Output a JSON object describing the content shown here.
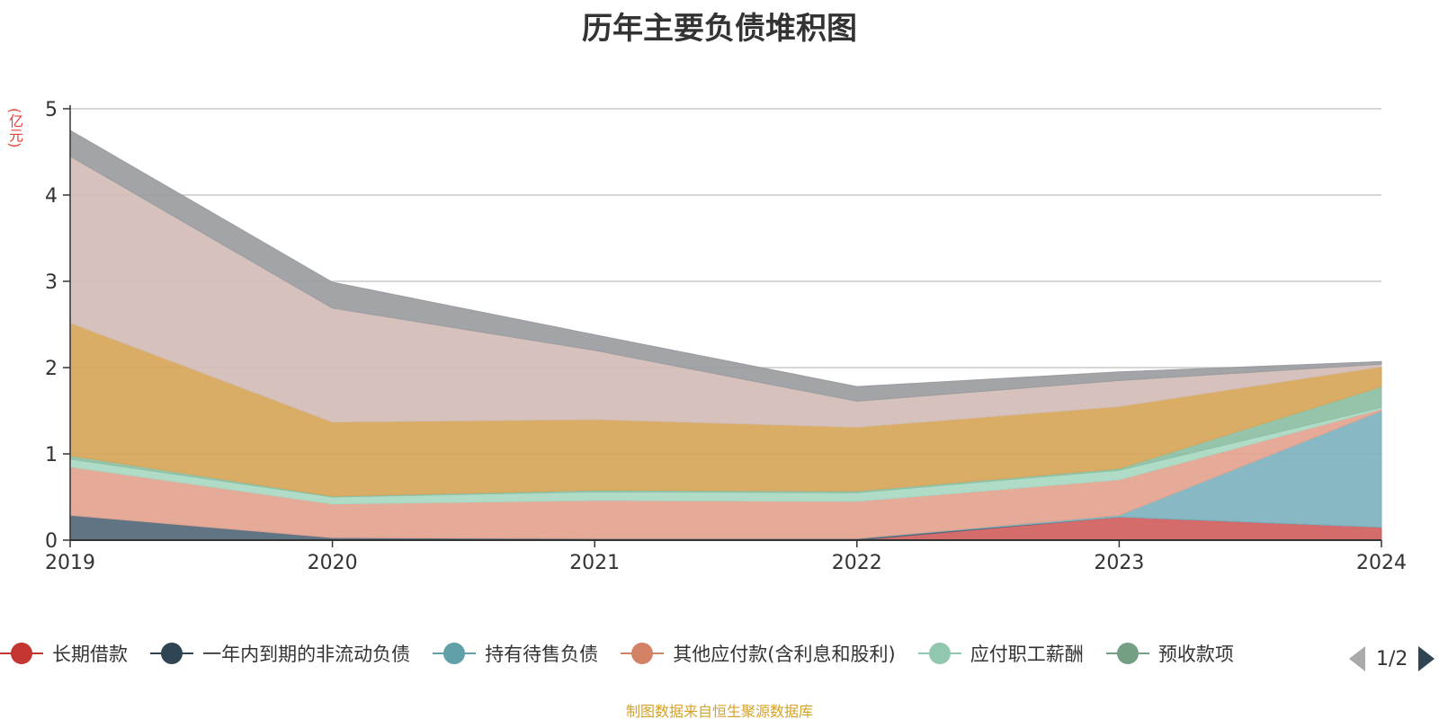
{
  "title": "历年主要负债堆积图",
  "unit_label": "(亿元)",
  "source_note": "制图数据来自恒生聚源数据库",
  "legend_page": "1/2",
  "chart_data": {
    "type": "area",
    "stacked": true,
    "x": [
      "2019",
      "2020",
      "2021",
      "2022",
      "2023",
      "2024"
    ],
    "ylim": [
      0,
      5
    ],
    "yticks": [
      "0",
      "1",
      "2",
      "3",
      "4",
      "5"
    ],
    "grid": true,
    "legend_position": "bottom",
    "series": [
      {
        "name": "长期借款",
        "color": "#d0605e",
        "values": [
          0,
          0,
          0,
          0,
          0.27,
          0.15
        ]
      },
      {
        "name": "一年内到期的非流动负债",
        "color": "#536878",
        "values": [
          0.29,
          0.03,
          0.02,
          0.02,
          0,
          0
        ]
      },
      {
        "name": "持有待售负债",
        "color": "#7eb2bf",
        "values": [
          0,
          0,
          0,
          0,
          0.02,
          1.35
        ]
      },
      {
        "name": "其他应付款(含利息和股利)",
        "color": "#e3a38f",
        "values": [
          0.56,
          0.39,
          0.44,
          0.43,
          0.41,
          0.02
        ]
      },
      {
        "name": "应付职工薪酬",
        "color": "#a9d8c2",
        "values": [
          0.09,
          0.08,
          0.1,
          0.1,
          0.11,
          0.02
        ]
      },
      {
        "name": "预收款项",
        "color": "#8cbfa3",
        "values": [
          0.04,
          0.01,
          0.02,
          0.02,
          0.02,
          0.24
        ]
      },
      {
        "name": "",
        "color": "#d7a65a",
        "values": [
          1.54,
          0.86,
          0.82,
          0.74,
          0.72,
          0.23
        ]
      },
      {
        "name": "",
        "color": "#d2bcb6",
        "values": [
          1.93,
          1.32,
          0.8,
          0.3,
          0.3,
          0.03
        ]
      },
      {
        "name": "",
        "color": "#9a9ca0",
        "values": [
          0.3,
          0.3,
          0.18,
          0.17,
          0.1,
          0.03
        ]
      }
    ]
  },
  "legend": [
    {
      "label": "长期借款",
      "color": "#c23531"
    },
    {
      "label": "一年内到期的非流动负债",
      "color": "#2f4554"
    },
    {
      "label": "持有待售负债",
      "color": "#61a0a8"
    },
    {
      "label": "其他应付款(含利息和股利)",
      "color": "#d48265"
    },
    {
      "label": "应付职工薪酬",
      "color": "#91c7ae"
    },
    {
      "label": "预收款项",
      "color": "#749f83"
    }
  ]
}
